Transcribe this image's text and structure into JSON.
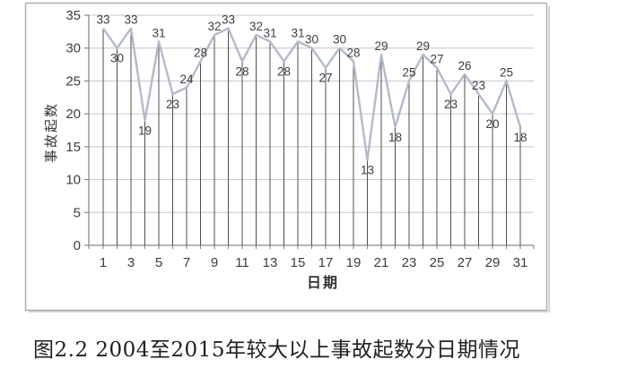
{
  "figure": {
    "caption": "图2.2 2004至2015年较大以上事故起数分日期情况"
  },
  "chart_data": {
    "type": "line",
    "title": "",
    "xlabel": "日期",
    "ylabel": "事故起数",
    "x": [
      1,
      2,
      3,
      4,
      5,
      6,
      7,
      8,
      9,
      10,
      11,
      12,
      13,
      14,
      15,
      16,
      17,
      18,
      19,
      20,
      21,
      22,
      23,
      24,
      25,
      26,
      27,
      28,
      29,
      30,
      31
    ],
    "values": [
      33,
      30,
      33,
      19,
      31,
      23,
      24,
      28,
      32,
      33,
      28,
      32,
      31,
      28,
      31,
      30,
      27,
      30,
      28,
      13,
      29,
      18,
      25,
      29,
      27,
      23,
      26,
      23,
      20,
      25,
      18
    ],
    "ylim": [
      0,
      35
    ],
    "ytick_step": 5,
    "xticks": [
      1,
      3,
      5,
      7,
      9,
      11,
      13,
      15,
      17,
      19,
      21,
      23,
      25,
      27,
      29,
      31
    ],
    "grid": "horizontal",
    "legend": "none",
    "data_labels": true,
    "droplines": true,
    "colors": {
      "series": "#b3bac8",
      "dropline": "#4f4f4f",
      "grid": "#c6c6c6",
      "axis": "#8a8a8a",
      "text": "#3d3d3d",
      "frame": "#a8a8a8",
      "frame_shadow": "#d6d6d6"
    }
  }
}
